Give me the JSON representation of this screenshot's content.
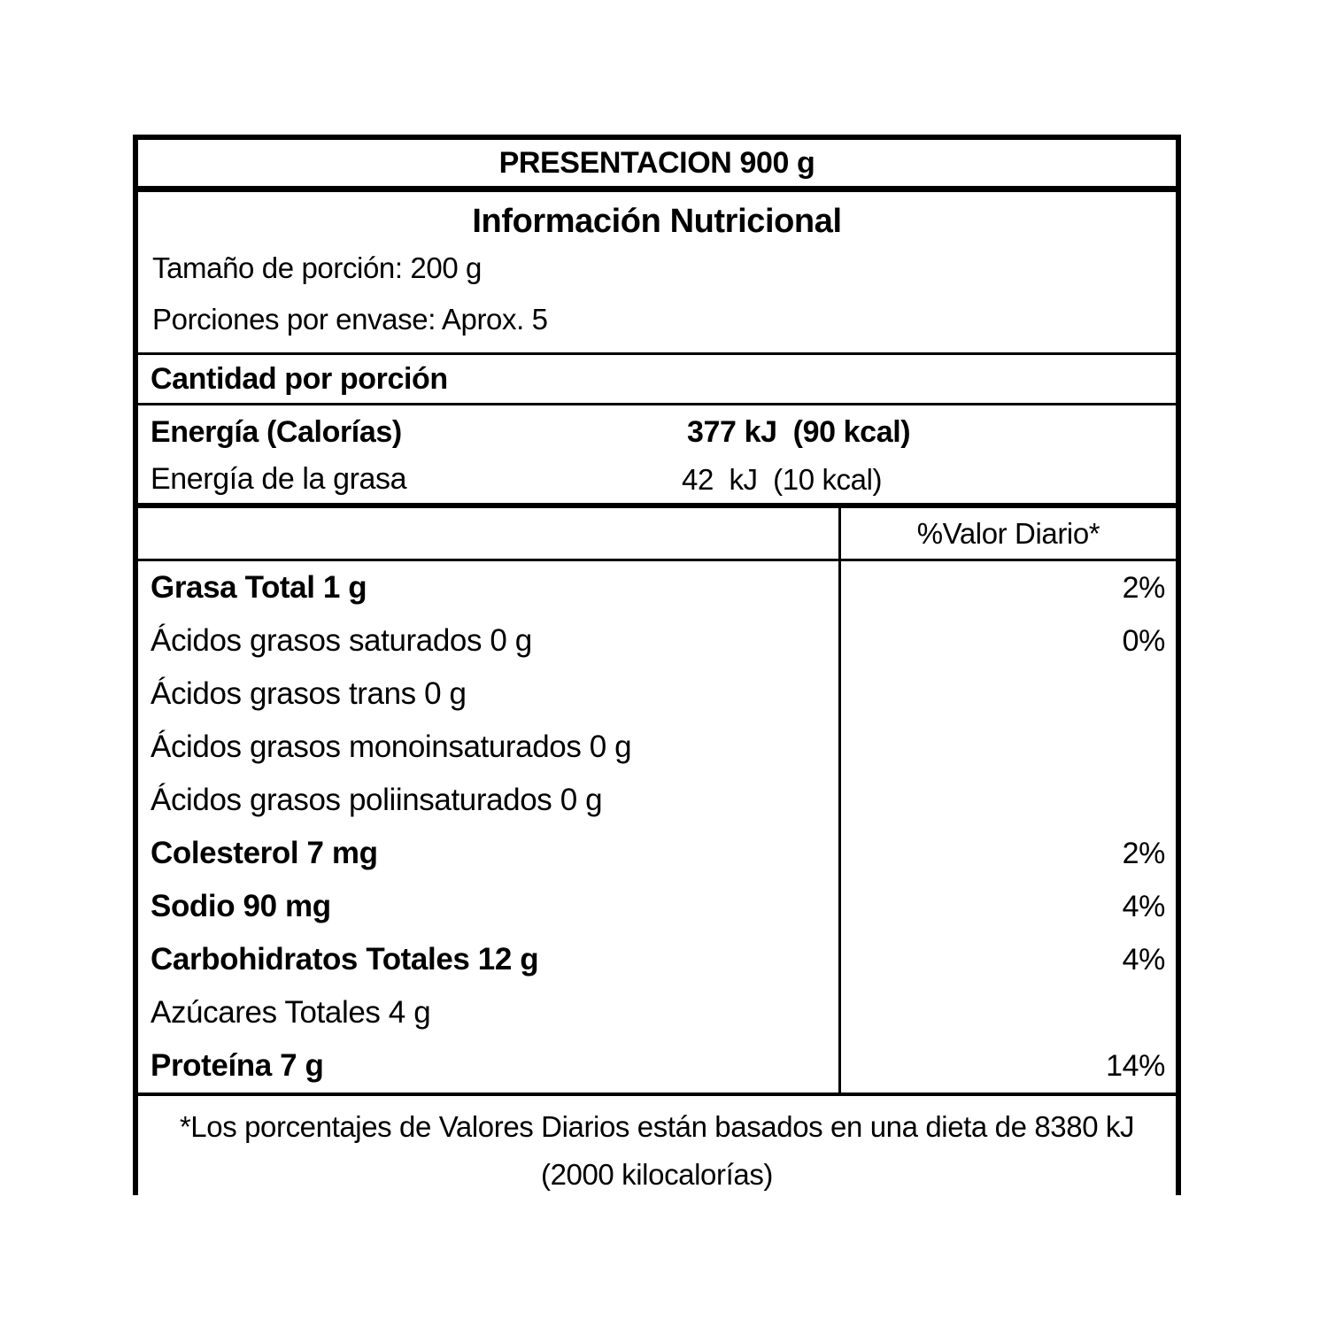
{
  "label": {
    "presentation": "PRESENTACION 900 g",
    "title": "Información Nutricional",
    "serving_size": "Tamaño de porción: 200 g",
    "servings_per_container": "Porciones por envase: Aprox. 5",
    "amount_per_serving": "Cantidad por porción",
    "energy_rows": [
      {
        "name": "Energía (Calorías)",
        "value": "377 kJ  (90 kcal)"
      },
      {
        "name": "Energía de la grasa",
        "value": "42  kJ  (10 kcal)"
      }
    ],
    "daily_value_header": "%Valor Diario*",
    "nutrients": [
      {
        "name": "Grasa Total 1 g",
        "dv": "2%"
      },
      {
        "name": "Ácidos grasos saturados 0 g",
        "dv": "0%"
      },
      {
        "name": "Ácidos grasos trans 0 g",
        "dv": ""
      },
      {
        "name": "Ácidos grasos monoinsaturados 0 g",
        "dv": ""
      },
      {
        "name": "Ácidos grasos poliinsaturados 0 g",
        "dv": ""
      },
      {
        "name": "Colesterol 7 mg",
        "dv": "2%"
      },
      {
        "name": "Sodio 90 mg",
        "dv": "4%"
      },
      {
        "name": "Carbohidratos Totales 12 g",
        "dv": "4%"
      },
      {
        "name": "Azúcares Totales 4 g",
        "dv": ""
      },
      {
        "name": "Proteína 7 g",
        "dv": "14%"
      }
    ],
    "footnote_line1": "*Los porcentajes de Valores Diarios están basados en una dieta de 8380 kJ",
    "footnote_line2": "(2000 kilocalorías)",
    "colors": {
      "border": "#000000",
      "text": "#000000",
      "background": "#ffffff"
    }
  }
}
